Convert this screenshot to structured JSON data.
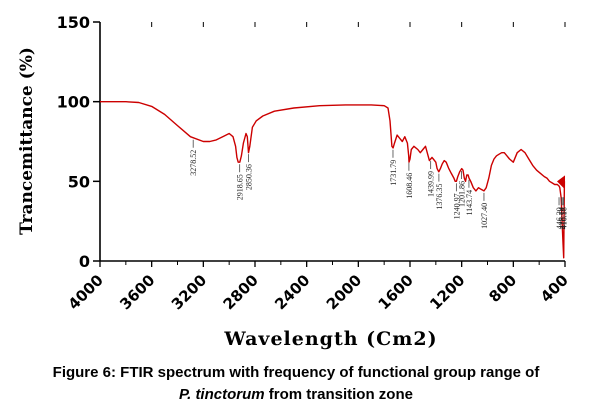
{
  "chart_data": {
    "type": "line",
    "title": "",
    "xlabel": "Wavelength (Cm2)",
    "ylabel": "Trancemittance (%)",
    "xlim": [
      4000,
      400
    ],
    "ylim": [
      0,
      150
    ],
    "x_ticks": [
      "4000",
      "3600",
      "3200",
      "2800",
      "2400",
      "2000",
      "1600",
      "1200",
      "800",
      "400"
    ],
    "y_ticks": [
      "0",
      "50",
      "100",
      "150"
    ],
    "line_color": "#cc0000",
    "grid": false,
    "series": [
      {
        "x": [
          4000,
          3800,
          3700,
          3600,
          3500,
          3400,
          3300,
          3200,
          3150,
          3100,
          3050,
          3000,
          2970,
          2950,
          2940,
          2930,
          2918,
          2905,
          2890,
          2870,
          2860,
          2850,
          2840,
          2820,
          2790,
          2740,
          2650,
          2500,
          2300,
          2100,
          1900,
          1800,
          1770,
          1755,
          1740,
          1731,
          1720,
          1700,
          1680,
          1660,
          1640,
          1620,
          1610,
          1608,
          1600,
          1590,
          1570,
          1540,
          1520,
          1500,
          1480,
          1460,
          1450,
          1440,
          1430,
          1420,
          1400,
          1390,
          1377,
          1365,
          1350,
          1335,
          1320,
          1300,
          1280,
          1260,
          1250,
          1241,
          1230,
          1215,
          1200,
          1190,
          1180,
          1170,
          1160,
          1150,
          1143,
          1130,
          1110,
          1090,
          1070,
          1050,
          1027,
          1010,
          990,
          970,
          950,
          930,
          910,
          890,
          870,
          850,
          830,
          800,
          770,
          740,
          710,
          680,
          650,
          620,
          590,
          560,
          540,
          520,
          500,
          480,
          460,
          446,
          440,
          430,
          425,
          420,
          415,
          410,
          405,
          400
        ],
        "y": [
          100,
          100,
          99.5,
          97,
          92,
          85,
          78,
          75,
          75,
          76,
          78,
          80,
          78,
          72,
          65,
          62,
          62,
          66,
          74,
          80,
          78,
          68,
          72,
          84,
          88,
          91,
          94,
          96,
          97.5,
          98,
          98,
          97.5,
          96,
          88,
          72,
          71,
          74,
          79,
          77,
          75,
          78,
          74,
          66,
          62,
          64,
          70,
          72,
          70,
          68,
          70,
          72,
          66,
          63,
          64,
          65,
          64,
          62,
          58,
          56,
          58,
          61,
          63,
          62,
          58,
          55,
          52,
          50,
          50,
          53,
          56,
          58,
          57,
          52,
          50,
          54,
          54,
          52,
          50,
          46,
          44,
          46,
          45,
          44,
          46,
          52,
          60,
          64,
          66,
          67,
          68,
          68,
          66,
          64,
          62,
          68,
          70,
          68,
          64,
          60,
          57,
          55,
          53,
          52,
          50,
          49,
          48,
          48,
          47,
          46,
          40,
          30,
          20,
          10,
          2,
          50,
          50
        ]
      }
    ],
    "peak_labels": [
      "3278.52",
      "2918.65",
      "2850.36",
      "1731.79",
      "1608.46",
      "1439.99",
      "1376.35",
      "1240.97",
      "1201.86",
      "1143.74",
      "1027.40",
      "446.20",
      "425.74",
      "416.57",
      "410.16"
    ],
    "peak_x": [
      3278.52,
      2918.65,
      2850.36,
      1731.79,
      1608.46,
      1439.99,
      1376.35,
      1240.97,
      1201.86,
      1143.74,
      1027.4,
      446.2,
      425.74,
      416.57,
      410.16
    ]
  },
  "caption": {
    "line1": "Figure 6: FTIR spectrum with frequency of functional group range of",
    "species": "P. tinctorum",
    "line2_rest": " from transition zone"
  }
}
